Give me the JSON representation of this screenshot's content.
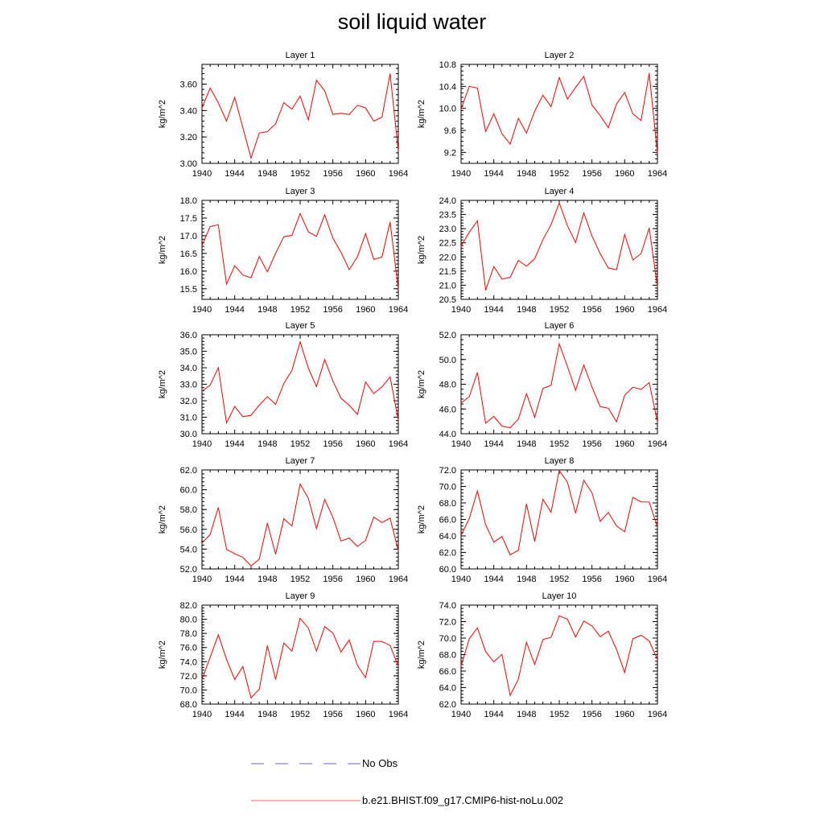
{
  "title": "soil liquid water",
  "legend": {
    "obs_label": "No Obs",
    "model_label": "b.e21.BHIST.f09_g17.CMIP6-hist-noLu.002",
    "obs_color": "#6666cc",
    "model_color": "#ff0000"
  },
  "chart_data": [
    {
      "type": "line",
      "title": "Layer 1",
      "ylabel": "kg/m^2",
      "xlim": [
        1940,
        1964
      ],
      "ylim": [
        3.0,
        3.75
      ],
      "yticks": [
        3.0,
        3.2,
        3.4,
        3.6
      ],
      "ytick_labels": [
        "3.00",
        "3.20",
        "3.40",
        "3.60"
      ],
      "xticks": [
        1940,
        1944,
        1948,
        1952,
        1956,
        1960,
        1964
      ],
      "series": [
        {
          "name": "b.e21.BHIST.f09_g17.CMIP6-hist-noLu.002",
          "x": [
            1940,
            1941,
            1942,
            1943,
            1944,
            1945,
            1946,
            1947,
            1948,
            1949,
            1950,
            1951,
            1952,
            1953,
            1954,
            1955,
            1956,
            1957,
            1958,
            1959,
            1960,
            1961,
            1962,
            1963,
            1964
          ],
          "values": [
            3.42,
            3.57,
            3.46,
            3.32,
            3.5,
            3.27,
            3.04,
            3.23,
            3.24,
            3.3,
            3.46,
            3.41,
            3.51,
            3.33,
            3.63,
            3.55,
            3.37,
            3.38,
            3.37,
            3.44,
            3.42,
            3.32,
            3.35,
            3.68,
            3.09
          ]
        }
      ]
    },
    {
      "type": "line",
      "title": "Layer 2",
      "ylabel": "kg/m^2",
      "xlim": [
        1940,
        1964
      ],
      "ylim": [
        9.0,
        10.8
      ],
      "yticks": [
        9.2,
        9.6,
        10.0,
        10.4,
        10.8
      ],
      "ytick_labels": [
        "9.2",
        "9.6",
        "10.0",
        "10.4",
        "10.8"
      ],
      "xticks": [
        1940,
        1944,
        1948,
        1952,
        1956,
        1960,
        1964
      ],
      "series": [
        {
          "name": "b.e21.BHIST.f09_g17.CMIP6-hist-noLu.002",
          "x": [
            1940,
            1941,
            1942,
            1943,
            1944,
            1945,
            1946,
            1947,
            1948,
            1949,
            1950,
            1951,
            1952,
            1953,
            1954,
            1955,
            1956,
            1957,
            1958,
            1959,
            1960,
            1961,
            1962,
            1963,
            1964
          ],
          "values": [
            9.99,
            10.4,
            10.37,
            9.58,
            9.9,
            9.54,
            9.35,
            9.82,
            9.55,
            9.95,
            10.24,
            10.03,
            10.56,
            10.17,
            10.38,
            10.58,
            10.06,
            9.87,
            9.65,
            10.08,
            10.29,
            9.9,
            9.78,
            10.64,
            9.18
          ]
        }
      ]
    },
    {
      "type": "line",
      "title": "Layer 3",
      "ylabel": "kg/m^2",
      "xlim": [
        1940,
        1964
      ],
      "ylim": [
        15.2,
        18.0
      ],
      "yticks": [
        15.5,
        16.0,
        16.5,
        17.0,
        17.5,
        18.0
      ],
      "ytick_labels": [
        "15.5",
        "16.0",
        "16.5",
        "17.0",
        "17.5",
        "18.0"
      ],
      "xticks": [
        1940,
        1944,
        1948,
        1952,
        1956,
        1960,
        1964
      ],
      "series": [
        {
          "name": "b.e21.BHIST.f09_g17.CMIP6-hist-noLu.002",
          "x": [
            1940,
            1941,
            1942,
            1943,
            1944,
            1945,
            1946,
            1947,
            1948,
            1949,
            1950,
            1951,
            1952,
            1953,
            1954,
            1955,
            1956,
            1957,
            1958,
            1959,
            1960,
            1961,
            1962,
            1963,
            1964
          ],
          "values": [
            16.72,
            17.26,
            17.31,
            15.63,
            16.15,
            15.89,
            15.81,
            16.41,
            15.98,
            16.5,
            16.97,
            17.01,
            17.63,
            17.11,
            16.98,
            17.59,
            16.93,
            16.53,
            16.04,
            16.4,
            17.06,
            16.33,
            16.4,
            17.39,
            15.48
          ]
        }
      ]
    },
    {
      "type": "line",
      "title": "Layer 4",
      "ylabel": "kg/m^2",
      "xlim": [
        1940,
        1964
      ],
      "ylim": [
        20.5,
        24.0
      ],
      "yticks": [
        20.5,
        21.0,
        21.5,
        22.0,
        22.5,
        23.0,
        23.5,
        24.0
      ],
      "ytick_labels": [
        "20.5",
        "21.0",
        "21.5",
        "22.0",
        "22.5",
        "23.0",
        "23.5",
        "24.0"
      ],
      "xticks": [
        1940,
        1944,
        1948,
        1952,
        1956,
        1960,
        1964
      ],
      "series": [
        {
          "name": "b.e21.BHIST.f09_g17.CMIP6-hist-noLu.002",
          "x": [
            1940,
            1941,
            1942,
            1943,
            1944,
            1945,
            1946,
            1947,
            1948,
            1949,
            1950,
            1951,
            1952,
            1953,
            1954,
            1955,
            1956,
            1957,
            1958,
            1959,
            1960,
            1961,
            1962,
            1963,
            1964
          ],
          "values": [
            22.39,
            22.87,
            23.28,
            20.82,
            21.66,
            21.22,
            21.27,
            21.88,
            21.67,
            21.94,
            22.61,
            23.14,
            23.91,
            23.1,
            22.51,
            23.56,
            22.74,
            22.12,
            21.61,
            21.55,
            22.79,
            21.89,
            22.12,
            23.03,
            20.93
          ]
        }
      ]
    },
    {
      "type": "line",
      "title": "Layer 5",
      "ylabel": "kg/m^2",
      "xlim": [
        1940,
        1964
      ],
      "ylim": [
        30.0,
        36.0
      ],
      "yticks": [
        30.0,
        31.0,
        32.0,
        33.0,
        34.0,
        35.0,
        36.0
      ],
      "ytick_labels": [
        "30.0",
        "31.0",
        "32.0",
        "33.0",
        "34.0",
        "35.0",
        "36.0"
      ],
      "xticks": [
        1940,
        1944,
        1948,
        1952,
        1956,
        1960,
        1964
      ],
      "series": [
        {
          "name": "b.e21.BHIST.f09_g17.CMIP6-hist-noLu.002",
          "x": [
            1940,
            1941,
            1942,
            1943,
            1944,
            1945,
            1946,
            1947,
            1948,
            1949,
            1950,
            1951,
            1952,
            1953,
            1954,
            1955,
            1956,
            1957,
            1958,
            1959,
            1960,
            1961,
            1962,
            1963,
            1964
          ],
          "values": [
            32.58,
            32.94,
            34.01,
            30.65,
            31.66,
            31.03,
            31.12,
            31.73,
            32.25,
            31.78,
            33.04,
            33.84,
            35.56,
            33.98,
            32.86,
            34.5,
            33.19,
            32.15,
            31.73,
            31.17,
            33.13,
            32.44,
            32.84,
            33.44,
            30.81
          ]
        }
      ]
    },
    {
      "type": "line",
      "title": "Layer 6",
      "ylabel": "kg/m^2",
      "xlim": [
        1940,
        1964
      ],
      "ylim": [
        44.0,
        52.0
      ],
      "yticks": [
        44.0,
        46.0,
        48.0,
        50.0,
        52.0
      ],
      "ytick_labels": [
        "44.0",
        "46.0",
        "48.0",
        "50.0",
        "52.0"
      ],
      "xticks": [
        1940,
        1944,
        1948,
        1952,
        1956,
        1960,
        1964
      ],
      "series": [
        {
          "name": "b.e21.BHIST.f09_g17.CMIP6-hist-noLu.002",
          "x": [
            1940,
            1941,
            1942,
            1943,
            1944,
            1945,
            1946,
            1947,
            1948,
            1949,
            1950,
            1951,
            1952,
            1953,
            1954,
            1955,
            1956,
            1957,
            1958,
            1959,
            1960,
            1961,
            1962,
            1963,
            1964
          ],
          "values": [
            46.48,
            46.99,
            48.95,
            44.85,
            45.4,
            44.62,
            44.48,
            45.19,
            47.24,
            45.33,
            47.67,
            47.91,
            51.27,
            49.43,
            47.51,
            49.55,
            47.77,
            46.19,
            46.06,
            44.96,
            47.11,
            47.76,
            47.58,
            48.13,
            44.95
          ]
        }
      ]
    },
    {
      "type": "line",
      "title": "Layer 7",
      "ylabel": "kg/m^2",
      "xlim": [
        1940,
        1964
      ],
      "ylim": [
        52.0,
        62.0
      ],
      "yticks": [
        52.0,
        54.0,
        56.0,
        58.0,
        60.0,
        62.0
      ],
      "ytick_labels": [
        "52.0",
        "54.0",
        "56.0",
        "58.0",
        "60.0",
        "62.0"
      ],
      "xticks": [
        1940,
        1944,
        1948,
        1952,
        1956,
        1960,
        1964
      ],
      "series": [
        {
          "name": "b.e21.BHIST.f09_g17.CMIP6-hist-noLu.002",
          "x": [
            1940,
            1941,
            1942,
            1943,
            1944,
            1945,
            1946,
            1947,
            1948,
            1949,
            1950,
            1951,
            1952,
            1953,
            1954,
            1955,
            1956,
            1957,
            1958,
            1959,
            1960,
            1961,
            1962,
            1963,
            1964
          ],
          "values": [
            54.61,
            55.48,
            58.21,
            53.98,
            53.53,
            53.17,
            52.3,
            52.98,
            56.63,
            53.49,
            57.07,
            56.33,
            60.58,
            59.14,
            56.07,
            59.02,
            57.22,
            54.82,
            55.12,
            54.27,
            54.88,
            57.24,
            56.68,
            57.13,
            53.83
          ]
        }
      ]
    },
    {
      "type": "line",
      "title": "Layer 8",
      "ylabel": "kg/m^2",
      "xlim": [
        1940,
        1964
      ],
      "ylim": [
        60.0,
        72.0
      ],
      "yticks": [
        60.0,
        62.0,
        64.0,
        66.0,
        68.0,
        70.0,
        72.0
      ],
      "ytick_labels": [
        "60.0",
        "62.0",
        "64.0",
        "66.0",
        "68.0",
        "70.0",
        "72.0"
      ],
      "xticks": [
        1940,
        1944,
        1948,
        1952,
        1956,
        1960,
        1964
      ],
      "series": [
        {
          "name": "b.e21.BHIST.f09_g17.CMIP6-hist-noLu.002",
          "x": [
            1940,
            1941,
            1942,
            1943,
            1944,
            1945,
            1946,
            1947,
            1948,
            1949,
            1950,
            1951,
            1952,
            1953,
            1954,
            1955,
            1956,
            1957,
            1958,
            1959,
            1960,
            1961,
            1962,
            1963,
            1964
          ],
          "values": [
            64.06,
            66.11,
            69.45,
            65.36,
            63.25,
            63.92,
            61.71,
            62.26,
            67.88,
            63.33,
            68.44,
            66.86,
            71.94,
            70.52,
            66.75,
            70.75,
            69.23,
            65.76,
            66.85,
            65.21,
            64.51,
            68.65,
            68.13,
            68.11,
            65.05
          ]
        }
      ]
    },
    {
      "type": "line",
      "title": "Layer 9",
      "ylabel": "kg/m^2",
      "xlim": [
        1940,
        1964
      ],
      "ylim": [
        68.0,
        82.0
      ],
      "yticks": [
        68.0,
        70.0,
        72.0,
        74.0,
        76.0,
        78.0,
        80.0,
        82.0
      ],
      "ytick_labels": [
        "68.0",
        "70.0",
        "72.0",
        "74.0",
        "76.0",
        "78.0",
        "80.0",
        "82.0"
      ],
      "xticks": [
        1940,
        1944,
        1948,
        1952,
        1956,
        1960,
        1964
      ],
      "series": [
        {
          "name": "b.e21.BHIST.f09_g17.CMIP6-hist-noLu.002",
          "x": [
            1940,
            1941,
            1942,
            1943,
            1944,
            1945,
            1946,
            1947,
            1948,
            1949,
            1950,
            1951,
            1952,
            1953,
            1954,
            1955,
            1956,
            1957,
            1958,
            1959,
            1960,
            1961,
            1962,
            1963,
            1964
          ],
          "values": [
            71.48,
            74.62,
            77.81,
            74.34,
            71.48,
            73.31,
            68.89,
            70.11,
            76.27,
            71.48,
            76.64,
            75.49,
            80.14,
            78.75,
            75.51,
            78.96,
            78.06,
            75.36,
            77.07,
            73.48,
            71.76,
            76.88,
            76.84,
            76.3,
            73.34
          ]
        }
      ]
    },
    {
      "type": "line",
      "title": "Layer 10",
      "ylabel": "kg/m^2",
      "xlim": [
        1940,
        1964
      ],
      "ylim": [
        62.0,
        74.0
      ],
      "yticks": [
        62.0,
        64.0,
        66.0,
        68.0,
        70.0,
        72.0,
        74.0
      ],
      "ytick_labels": [
        "62.0",
        "64.0",
        "66.0",
        "68.0",
        "70.0",
        "72.0",
        "74.0"
      ],
      "xticks": [
        1940,
        1944,
        1948,
        1952,
        1956,
        1960,
        1964
      ],
      "series": [
        {
          "name": "b.e21.BHIST.f09_g17.CMIP6-hist-noLu.002",
          "x": [
            1940,
            1941,
            1942,
            1943,
            1944,
            1945,
            1946,
            1947,
            1948,
            1949,
            1950,
            1951,
            1952,
            1953,
            1954,
            1955,
            1956,
            1957,
            1958,
            1959,
            1960,
            1961,
            1962,
            1963,
            1964
          ],
          "values": [
            66.65,
            69.92,
            71.24,
            68.37,
            67.12,
            68.02,
            63.05,
            65.02,
            69.5,
            66.81,
            69.82,
            70.1,
            72.7,
            72.29,
            70.14,
            72.07,
            71.49,
            70.17,
            70.84,
            68.61,
            65.83,
            69.92,
            70.34,
            69.66,
            67.41
          ]
        }
      ]
    }
  ]
}
